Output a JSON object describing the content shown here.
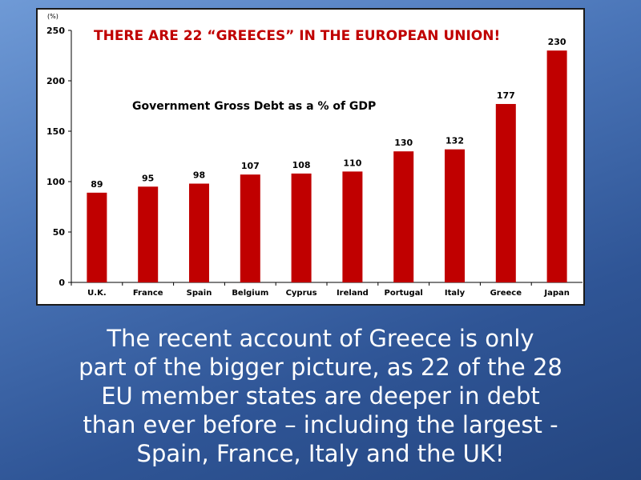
{
  "chart_data": {
    "type": "bar",
    "title": "THERE ARE 22 “GREECES” IN THE EUROPEAN UNION!",
    "subtitle": "Government Gross Debt as a % of GDP",
    "unit_label": "(%)",
    "categories": [
      "U.K.",
      "France",
      "Spain",
      "Belgium",
      "Cyprus",
      "Ireland",
      "Portugal",
      "Italy",
      "Greece",
      "Japan"
    ],
    "values": [
      89,
      95,
      98,
      107,
      108,
      110,
      130,
      132,
      177,
      230
    ],
    "ylim": [
      0,
      250
    ],
    "yticks": [
      0,
      50,
      100,
      150,
      200,
      250
    ],
    "xlabel": "",
    "ylabel": "",
    "grid": false,
    "bar_color": "#c00000"
  },
  "caption": {
    "lines": [
      "The recent account of Greece is only",
      "part of the bigger picture, as 22 of the 28",
      "EU member states are deeper in debt",
      "than ever before – including the largest -",
      "Spain, France, Italy and the UK!"
    ]
  }
}
